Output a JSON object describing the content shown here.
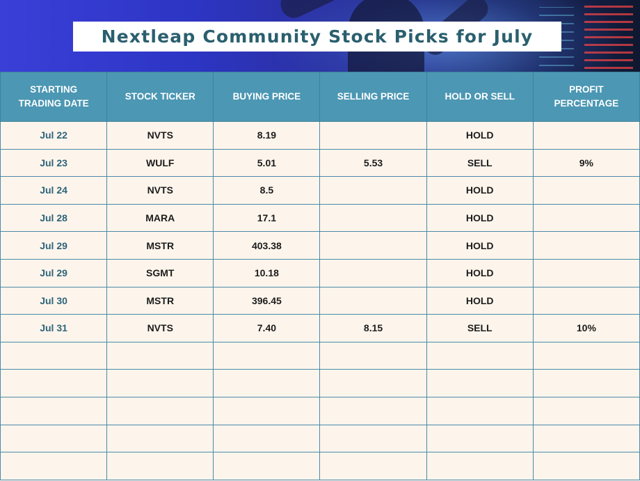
{
  "title": "Nextleap Community Stock Picks for July",
  "colors": {
    "header_bg": "#4c97b3",
    "title_text": "#2a5f6e",
    "row_bg": "#fdf5ec",
    "date_text": "#2c6479"
  },
  "table": {
    "headers": [
      "STARTING\nTRADING DATE",
      "STOCK TICKER",
      "BUYING PRICE",
      "SELLING PRICE",
      "HOLD OR SELL",
      "PROFIT\nPERCENTAGE"
    ],
    "rows": [
      [
        "Jul 22",
        "NVTS",
        "8.19",
        "",
        "HOLD",
        ""
      ],
      [
        "Jul 23",
        "WULF",
        "5.01",
        "5.53",
        "SELL",
        "9%"
      ],
      [
        "Jul 24",
        "NVTS",
        "8.5",
        "",
        "HOLD",
        ""
      ],
      [
        "Jul 28",
        "MARA",
        "17.1",
        "",
        "HOLD",
        ""
      ],
      [
        "Jul 29",
        "MSTR",
        "403.38",
        "",
        "HOLD",
        ""
      ],
      [
        "Jul 29",
        "SGMT",
        "10.18",
        "",
        "HOLD",
        ""
      ],
      [
        "Jul 30",
        "MSTR",
        "396.45",
        "",
        "HOLD",
        ""
      ],
      [
        "Jul 31",
        "NVTS",
        "7.40",
        "8.15",
        "SELL",
        "10%"
      ],
      [
        "",
        "",
        "",
        "",
        "",
        ""
      ],
      [
        "",
        "",
        "",
        "",
        "",
        ""
      ],
      [
        "",
        "",
        "",
        "",
        "",
        ""
      ],
      [
        "",
        "",
        "",
        "",
        "",
        ""
      ],
      [
        "",
        "",
        "",
        "",
        "",
        ""
      ]
    ]
  }
}
